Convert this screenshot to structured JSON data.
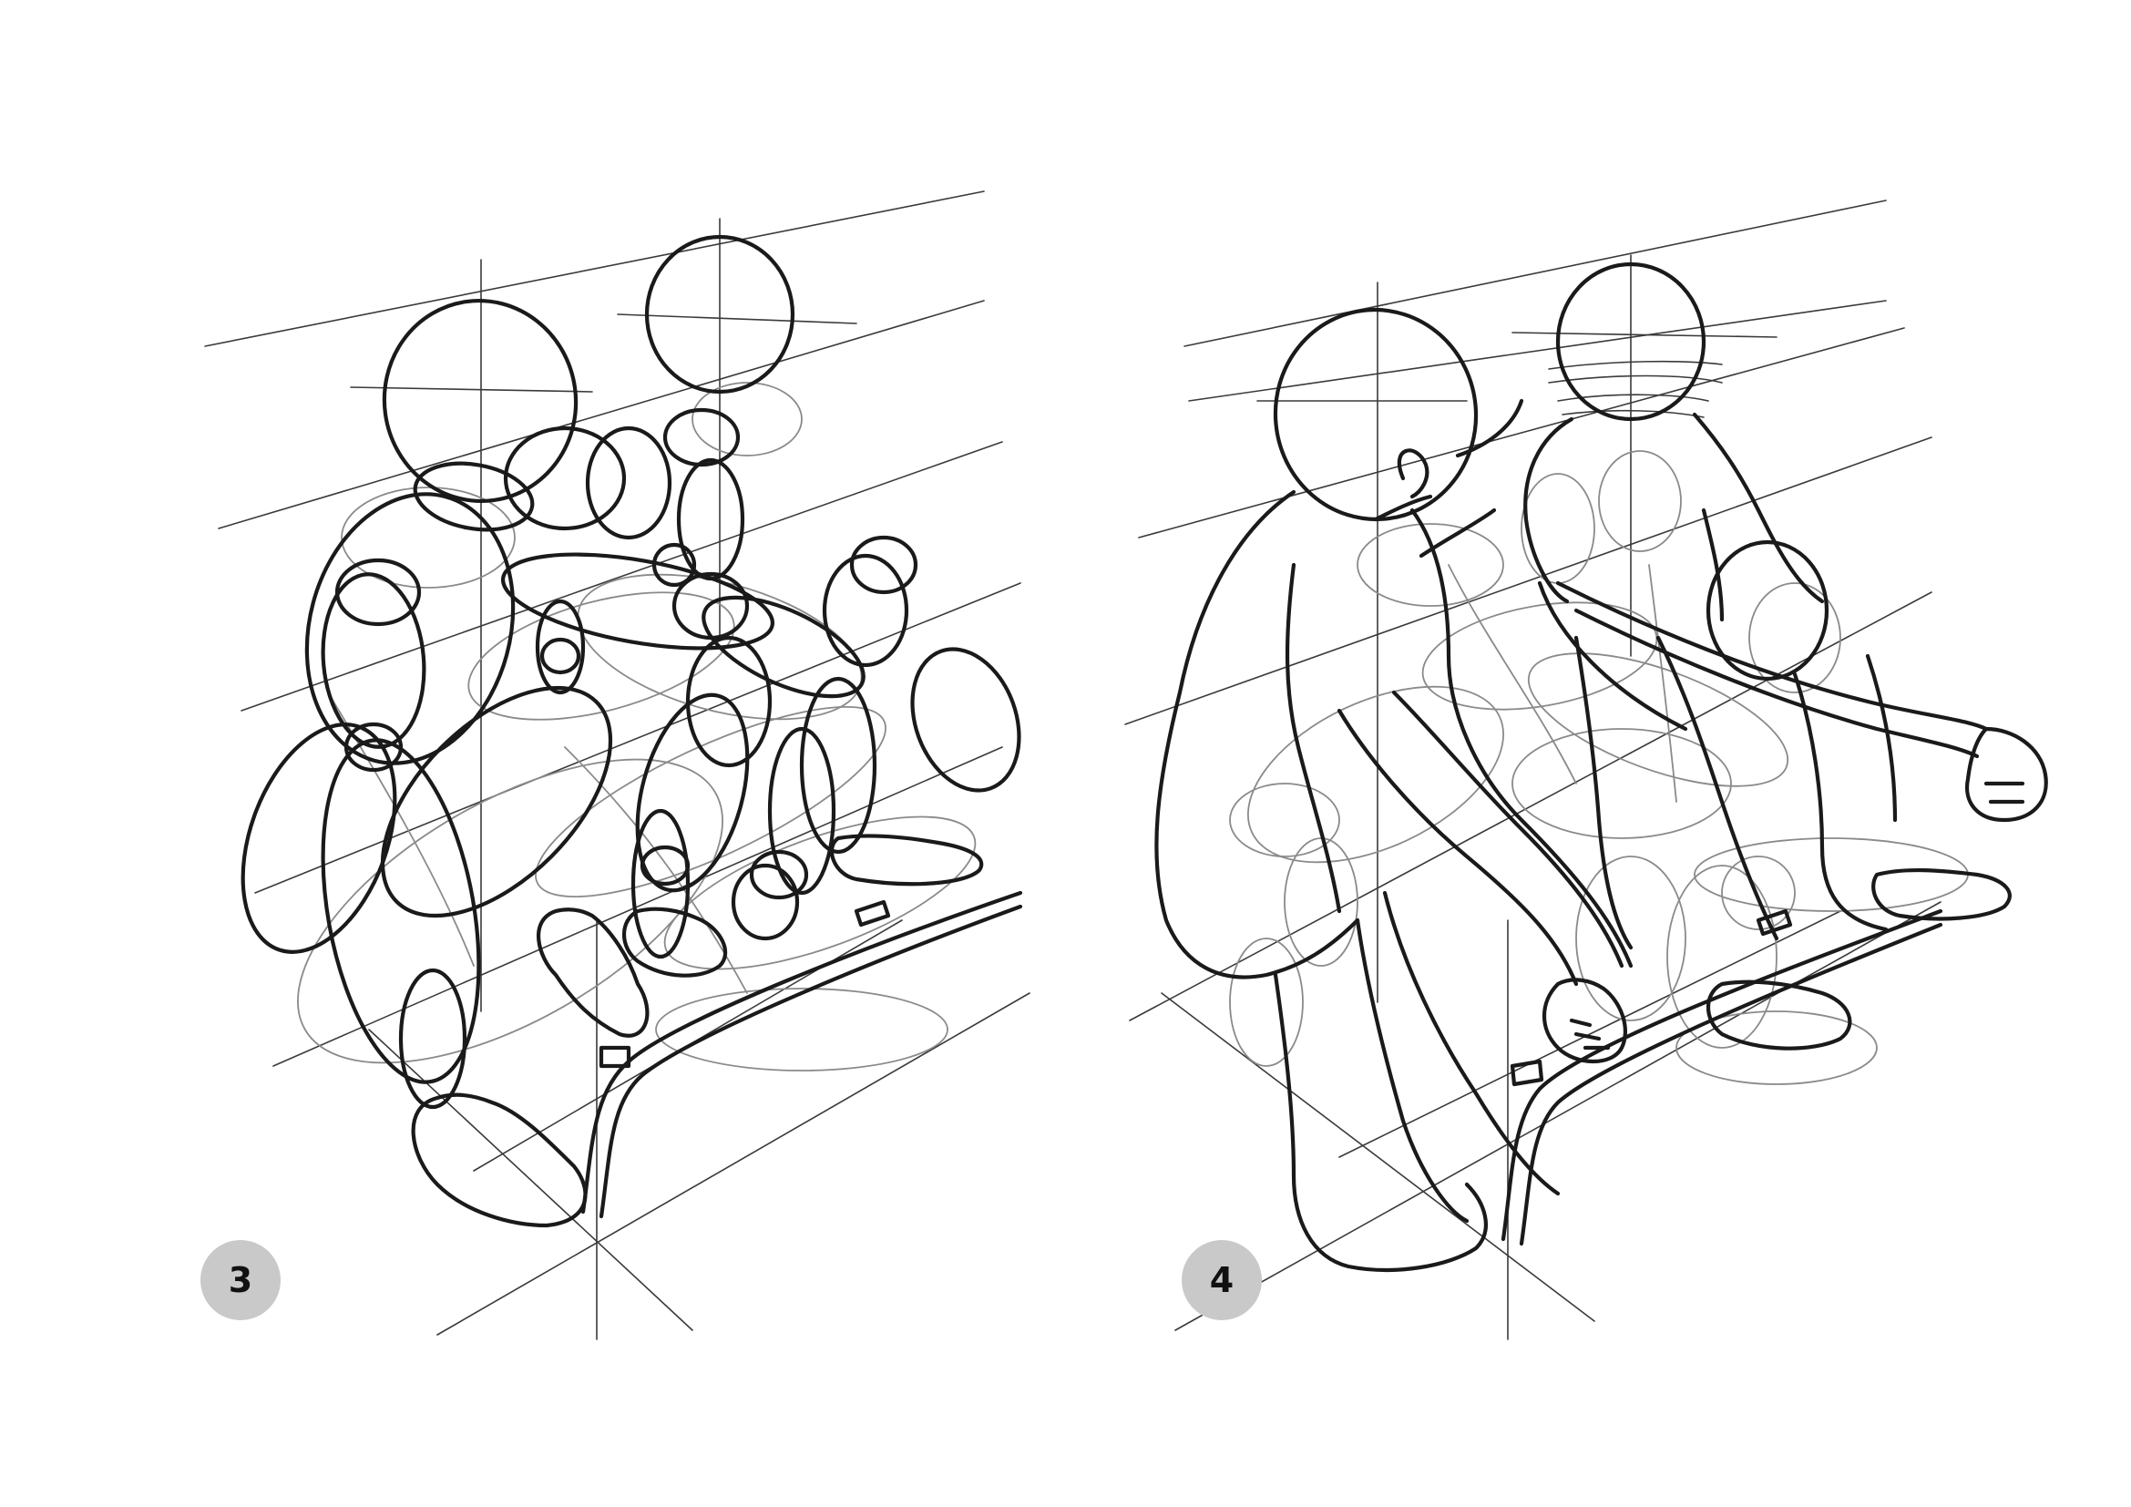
{
  "steps": [
    {
      "number": "3"
    },
    {
      "number": "4"
    }
  ],
  "colors": {
    "paper": "#ffffff",
    "ink": "#1a1a1a",
    "construction": "#8a8a8a",
    "badge": "#c9c9c9"
  }
}
